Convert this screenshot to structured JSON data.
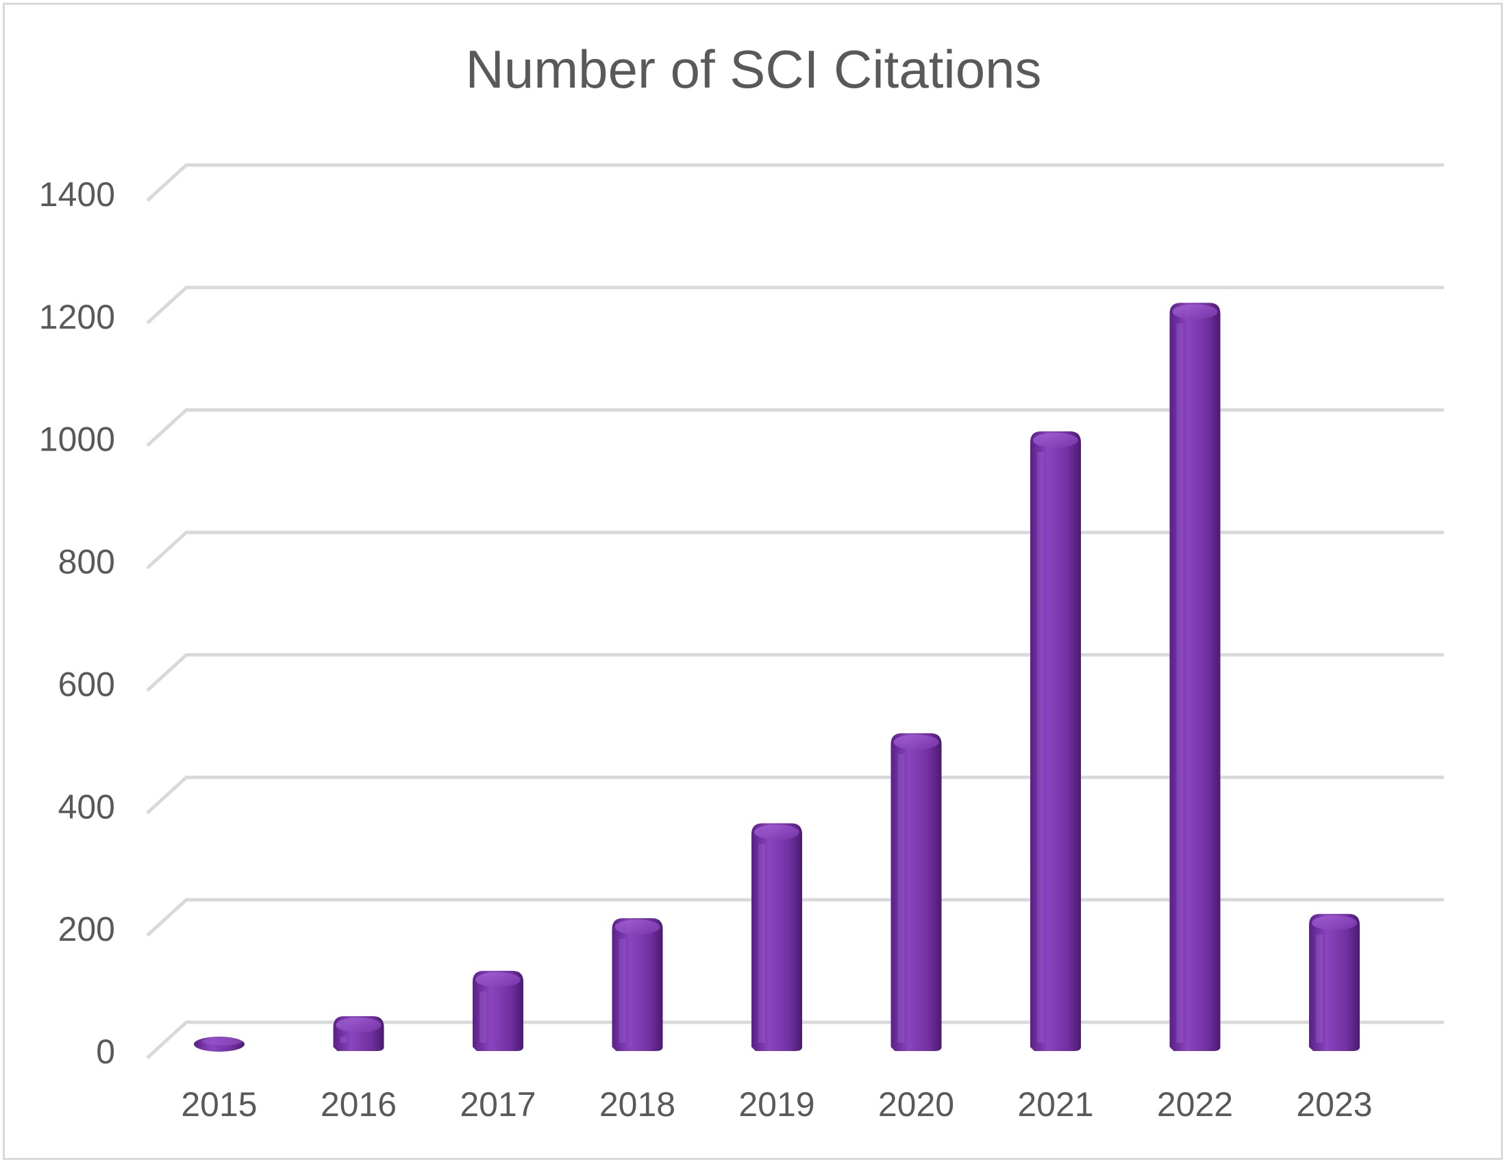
{
  "chart_data": {
    "type": "bar",
    "title": "Number of SCI Citations",
    "xlabel": "",
    "ylabel": "",
    "categories": [
      "2015",
      "2016",
      "2017",
      "2018",
      "2019",
      "2020",
      "2021",
      "2022",
      "2023"
    ],
    "values": [
      8,
      48,
      122,
      208,
      363,
      510,
      1003,
      1213,
      215
    ],
    "ylim": [
      0,
      1400
    ],
    "yticks": [
      0,
      200,
      400,
      600,
      800,
      1000,
      1200,
      1400
    ],
    "grid": true,
    "legend": "none",
    "style": "3d-cylinder",
    "colors": {
      "bar": "#7030a0",
      "bar_light": "#9a55cc",
      "bar_dark": "#4b1a70",
      "grid": "#d9d9d9",
      "text": "#595959"
    }
  }
}
